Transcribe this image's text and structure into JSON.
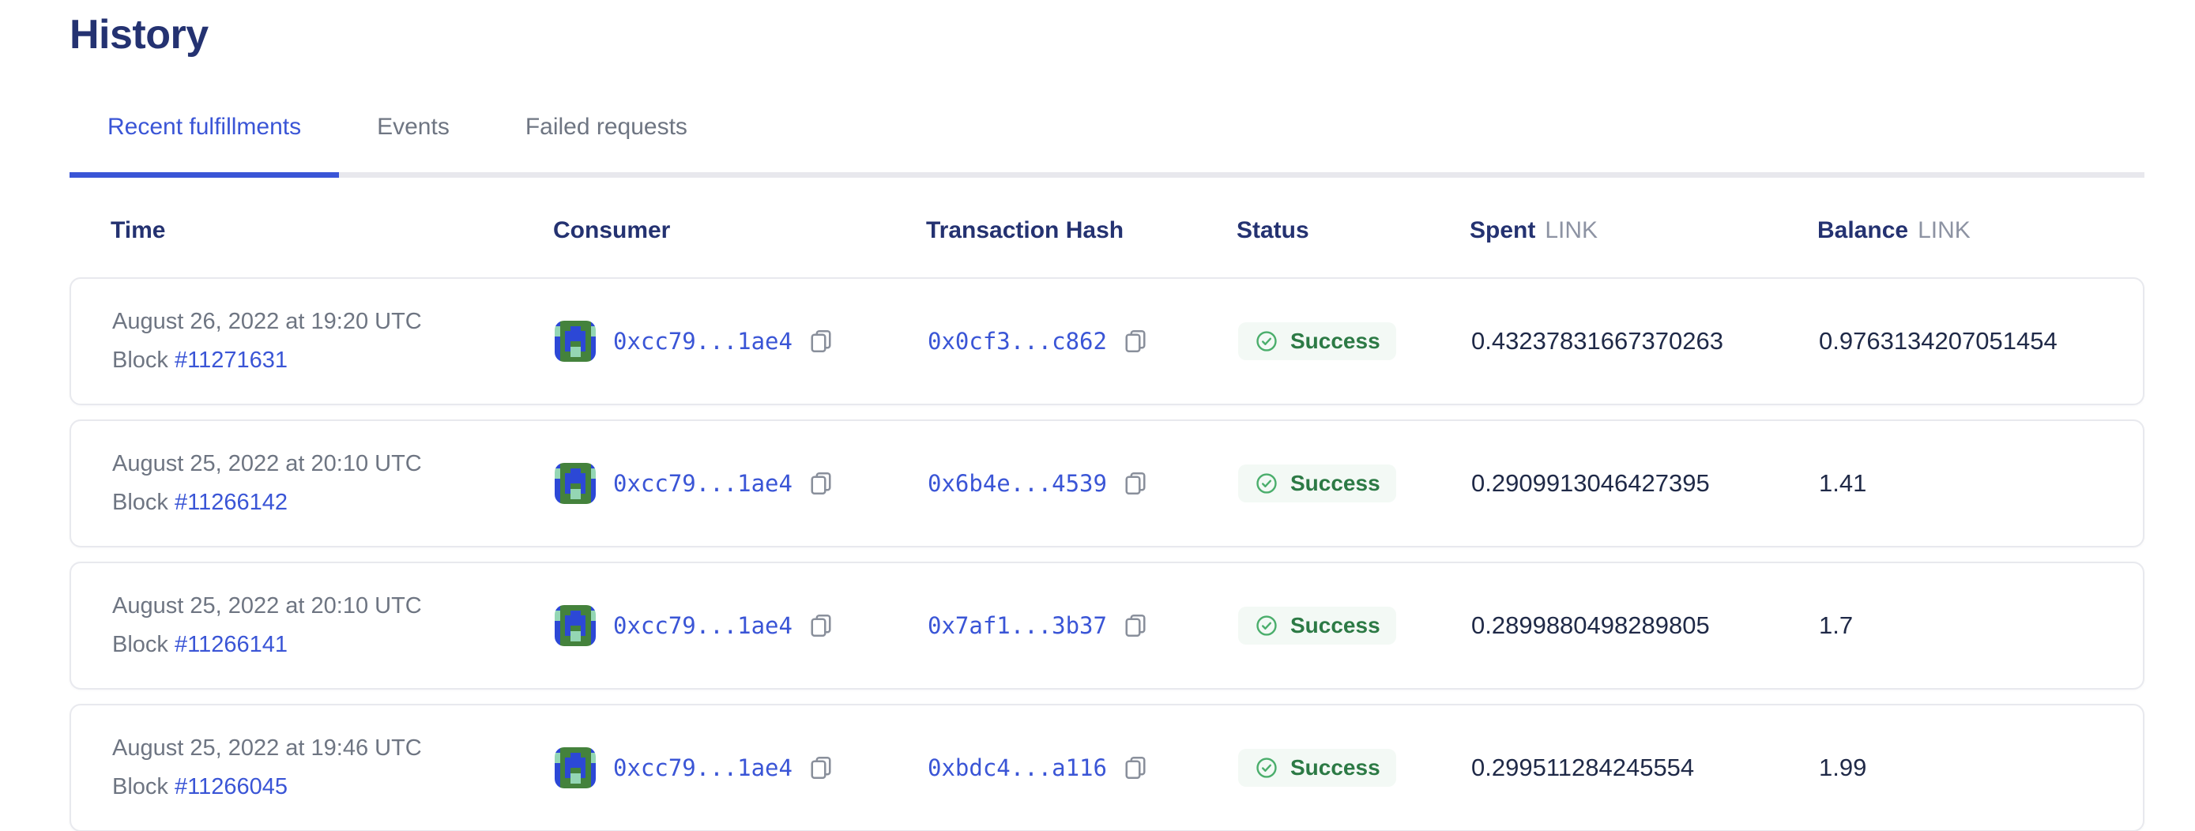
{
  "page": {
    "title": "History"
  },
  "tabs": [
    {
      "label": "Recent fulfillments",
      "active": true
    },
    {
      "label": "Events",
      "active": false
    },
    {
      "label": "Failed requests",
      "active": false
    }
  ],
  "table": {
    "columns": {
      "time": "Time",
      "consumer": "Consumer",
      "hash": "Transaction Hash",
      "status": "Status",
      "spent": "Spent",
      "spent_unit": "LINK",
      "balance": "Balance",
      "balance_unit": "LINK"
    },
    "rows": [
      {
        "date": "August 26, 2022 at 19:20 UTC",
        "block_label": "Block",
        "block_number": "#11271631",
        "consumer": "0xcc79...1ae4",
        "hash": "0x0cf3...c862",
        "status": "Success",
        "spent": "0.43237831667370263",
        "balance": "0.9763134207051454"
      },
      {
        "date": "August 25, 2022 at 20:10 UTC",
        "block_label": "Block",
        "block_number": "#11266142",
        "consumer": "0xcc79...1ae4",
        "hash": "0x6b4e...4539",
        "status": "Success",
        "spent": "0.2909913046427395",
        "balance": "1.41"
      },
      {
        "date": "August 25, 2022 at 20:10 UTC",
        "block_label": "Block",
        "block_number": "#11266141",
        "consumer": "0xcc79...1ae4",
        "hash": "0x7af1...3b37",
        "status": "Success",
        "spent": "0.2899880498289805",
        "balance": "1.7"
      },
      {
        "date": "August 25, 2022 at 19:46 UTC",
        "block_label": "Block",
        "block_number": "#11266045",
        "consumer": "0xcc79...1ae4",
        "hash": "0xbdc4...a116",
        "status": "Success",
        "spent": "0.299511284245554",
        "balance": "1.99"
      }
    ]
  },
  "identicon": {
    "pattern": [
      "BGGGGGGB",
      "TGGBBGGT",
      "TGBBBBGT",
      "BGBBBBGB",
      "BGBGGBGB",
      "BGBTTBGB",
      "BGGTTGGB",
      "BGGGGGGB"
    ],
    "colors": {
      "G": "#44823c",
      "B": "#2c48d6",
      "T": "#94d6b4"
    }
  },
  "colors": {
    "heading_navy": "#243271",
    "accent_blue": "#3a55d6",
    "link_blue": "#3f59dc",
    "muted_gray": "#6e7582",
    "unit_gray": "#8d93a3",
    "success_green": "#2c7a45",
    "success_icon_green": "#4bae6c",
    "success_bg": "#f3f9f5",
    "card_border": "#e8e9ee"
  }
}
